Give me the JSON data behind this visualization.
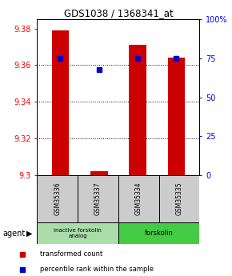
{
  "title": "GDS1038 / 1368341_at",
  "samples": [
    "GSM35336",
    "GSM35337",
    "GSM35334",
    "GSM35335"
  ],
  "bar_values": [
    9.379,
    9.302,
    9.371,
    9.364
  ],
  "percentile_values": [
    75,
    68,
    75,
    75
  ],
  "bar_color": "#cc0000",
  "percentile_color": "#0000cc",
  "ylim": [
    9.3,
    9.385
  ],
  "y_ticks": [
    9.3,
    9.32,
    9.34,
    9.36,
    9.38
  ],
  "y_ticks_right": [
    0,
    25,
    50,
    75,
    100
  ],
  "groups": [
    {
      "label": "inactive forskolin\nanalog",
      "color": "#aaddaa"
    },
    {
      "label": "forskolin",
      "color": "#44cc44"
    }
  ],
  "legend_red": "transformed count",
  "legend_blue": "percentile rank within the sample",
  "bar_width": 0.45,
  "x_positions": [
    0,
    1,
    2,
    3
  ],
  "grid_lines": [
    9.32,
    9.34,
    9.36
  ],
  "sample_box_color": "#cccccc",
  "title_fontsize": 8.5,
  "tick_fontsize": 7
}
